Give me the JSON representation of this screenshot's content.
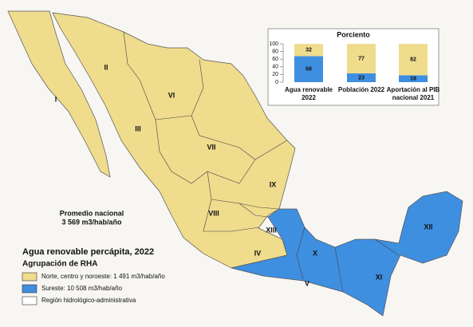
{
  "map": {
    "title": "Agua renovable percápita, 2022",
    "subtitle": "Agrupación de RHA",
    "average_label": "Promedio nacional",
    "average_value": "3 569 m3/hab/año",
    "regions": [
      "I",
      "II",
      "III",
      "IV",
      "V",
      "VI",
      "VII",
      "VIII",
      "IX",
      "X",
      "XI",
      "XII",
      "XIII"
    ],
    "legend": [
      {
        "label": "Norte, centro y noroeste: 1 491 m3/hab/año",
        "color": "#efdc8d"
      },
      {
        "label": "Sureste: 10 508 m3/hab/año",
        "color": "#3f8fe0"
      },
      {
        "label": "Región hidrológico-administrativa",
        "color": "#ffffff"
      }
    ]
  },
  "chart_data": {
    "type": "bar",
    "stacked": true,
    "title": "Porciento",
    "categories": [
      "Agua renovable 2022",
      "Población  2022",
      "Aportación al PIB nacional 2021"
    ],
    "series": [
      {
        "name": "Sureste",
        "color": "#3f8fe0",
        "values": [
          68,
          23,
          18
        ]
      },
      {
        "name": "Norte, centro y noroeste",
        "color": "#efdc8d",
        "values": [
          32,
          77,
          82
        ]
      }
    ],
    "ylim": [
      0,
      100
    ],
    "yticks": [
      0,
      20,
      40,
      60,
      80,
      100
    ]
  }
}
